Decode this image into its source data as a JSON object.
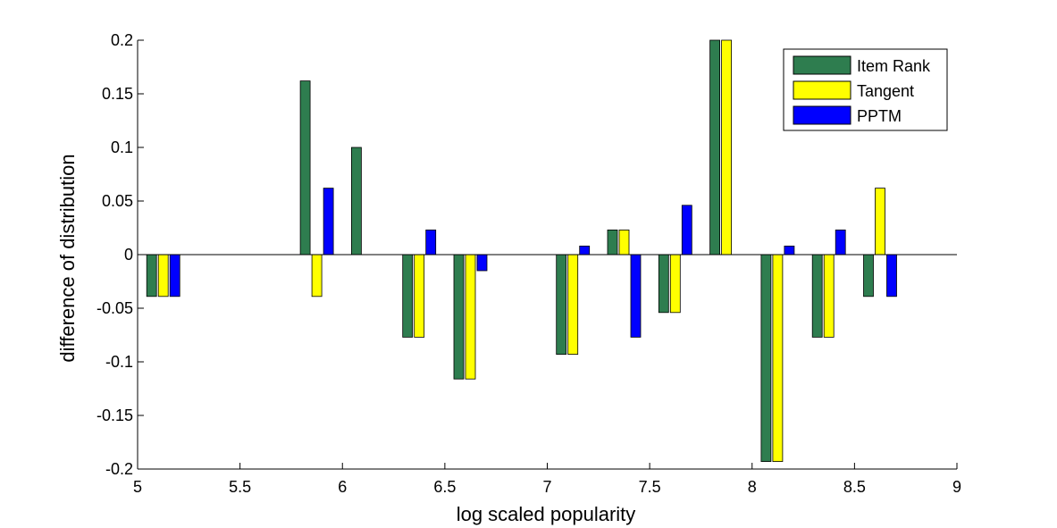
{
  "chart_data": {
    "type": "bar",
    "xlabel": "log scaled popularity",
    "ylabel": "difference of distribution",
    "xlim": [
      5,
      9
    ],
    "ylim": [
      -0.2,
      0.2
    ],
    "xticks": [
      "5",
      "5.5",
      "6",
      "6.5",
      "7",
      "7.5",
      "8",
      "8.5",
      "9"
    ],
    "yticks": [
      "-0.2",
      "-0.15",
      "-0.1",
      "-0.05",
      "0",
      "0.05",
      "0.1",
      "0.15",
      "0.2"
    ],
    "grid": false,
    "legend_position": "top-right",
    "x": [
      5.125,
      5.875,
      6.125,
      6.375,
      6.625,
      7.125,
      7.375,
      7.625,
      7.875,
      8.125,
      8.375,
      8.625
    ],
    "series": [
      {
        "name": "Item Rank",
        "color": "#2e7d4f",
        "values": [
          -0.039,
          0.162,
          0.1,
          -0.077,
          -0.116,
          -0.093,
          0.023,
          -0.054,
          0.2,
          -0.193,
          -0.077,
          -0.039
        ]
      },
      {
        "name": "Tangent",
        "color": "#ffff00",
        "values": [
          -0.039,
          -0.039,
          0,
          -0.077,
          -0.116,
          -0.093,
          0.023,
          -0.054,
          0.2,
          -0.193,
          -0.077,
          0.062
        ]
      },
      {
        "name": "PPTM",
        "color": "#0000ff",
        "values": [
          -0.039,
          0.062,
          0,
          0.023,
          -0.015,
          0.008,
          -0.077,
          0.046,
          0,
          0.008,
          0.023,
          -0.039
        ]
      }
    ]
  }
}
